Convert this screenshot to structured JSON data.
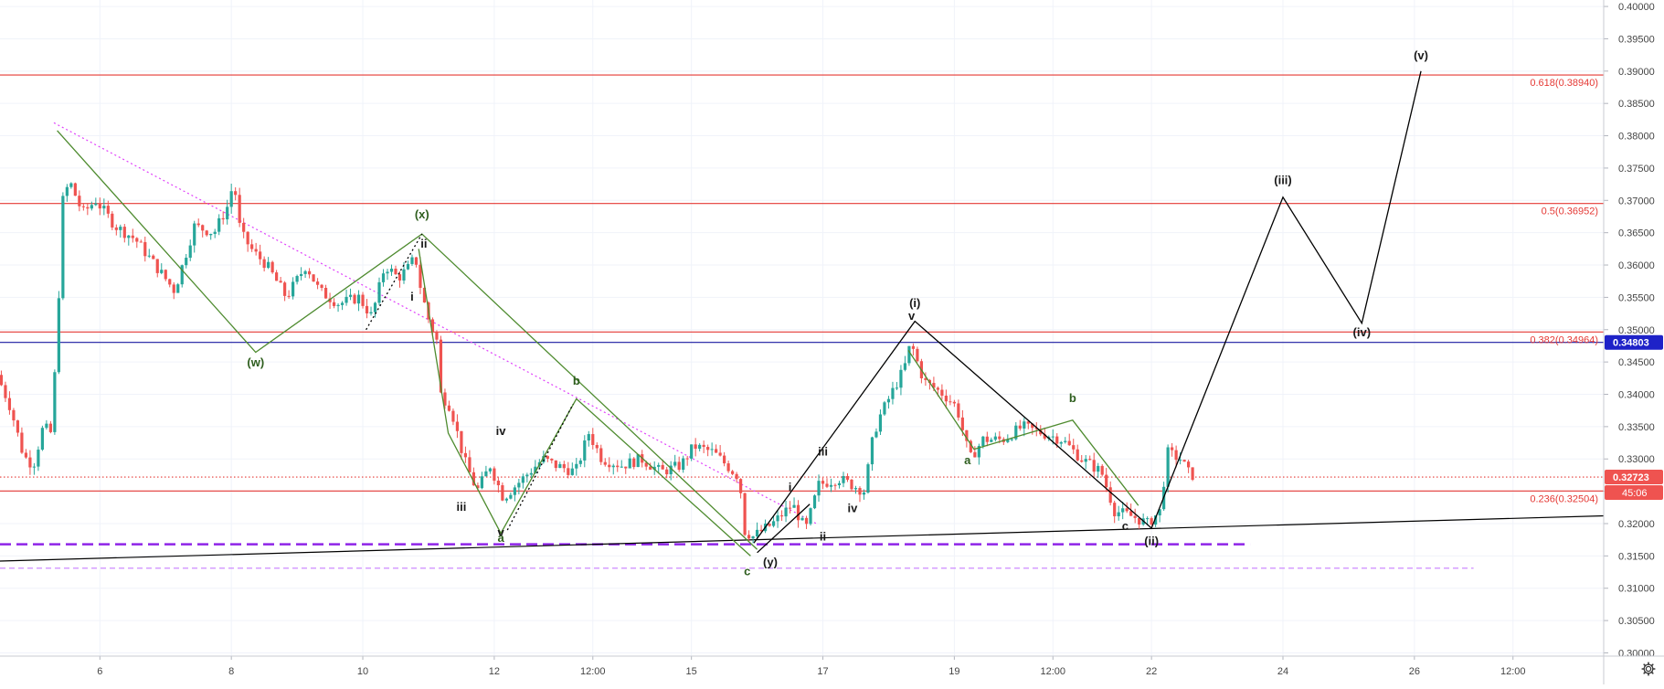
{
  "chart_data": {
    "type": "candlestick",
    "y_axis_ticks": [
      "0.40000",
      "0.39500",
      "0.39000",
      "0.38500",
      "0.38000",
      "0.37500",
      "0.37000",
      "0.36500",
      "0.36000",
      "0.35500",
      "0.35000",
      "0.34500",
      "0.34000",
      "0.33500",
      "0.33000",
      "0.32500",
      "0.32000",
      "0.31500",
      "0.31000",
      "0.30500",
      "0.30000"
    ],
    "ylim": [
      0.2995,
      0.401
    ],
    "x_axis_ticks": [
      {
        "label": "6",
        "x": 6
      },
      {
        "label": "8",
        "x": 8
      },
      {
        "label": "10",
        "x": 10
      },
      {
        "label": "12",
        "x": 12
      },
      {
        "label": "12:00",
        "x": 13.5
      },
      {
        "label": "15",
        "x": 15
      },
      {
        "label": "17",
        "x": 17
      },
      {
        "label": "19",
        "x": 19
      },
      {
        "label": "12:00",
        "x": 20.5
      },
      {
        "label": "22",
        "x": 22
      },
      {
        "label": "24",
        "x": 24
      },
      {
        "label": "26",
        "x": 26
      },
      {
        "label": "12:00",
        "x": 27.5
      }
    ],
    "xlim": [
      4.48,
      28.88
    ],
    "price_series": [
      [
        4.5,
        0.343
      ],
      [
        4.7,
        0.338
      ],
      [
        4.9,
        0.3305
      ],
      [
        5.05,
        0.329
      ],
      [
        5.2,
        0.335
      ],
      [
        5.32,
        0.334
      ],
      [
        5.4,
        0.347
      ],
      [
        5.5,
        0.37
      ],
      [
        5.6,
        0.373
      ],
      [
        5.8,
        0.368
      ],
      [
        6.0,
        0.37
      ],
      [
        6.3,
        0.366
      ],
      [
        6.6,
        0.364
      ],
      [
        6.9,
        0.36
      ],
      [
        7.2,
        0.356
      ],
      [
        7.5,
        0.366
      ],
      [
        7.8,
        0.365
      ],
      [
        8.0,
        0.369
      ],
      [
        8.1,
        0.373
      ],
      [
        8.2,
        0.365
      ],
      [
        8.4,
        0.362
      ],
      [
        8.6,
        0.36
      ],
      [
        8.9,
        0.355
      ],
      [
        9.2,
        0.36
      ],
      [
        9.4,
        0.356
      ],
      [
        9.7,
        0.354
      ],
      [
        10.0,
        0.355
      ],
      [
        10.2,
        0.352
      ],
      [
        10.4,
        0.36
      ],
      [
        10.6,
        0.358
      ],
      [
        10.8,
        0.36
      ],
      [
        10.85,
        0.362
      ],
      [
        10.95,
        0.356
      ],
      [
        11.05,
        0.352
      ],
      [
        11.2,
        0.348
      ],
      [
        11.25,
        0.34
      ],
      [
        11.4,
        0.338
      ],
      [
        11.6,
        0.33
      ],
      [
        11.8,
        0.325
      ],
      [
        12.0,
        0.329
      ],
      [
        12.2,
        0.324
      ],
      [
        12.5,
        0.327
      ],
      [
        12.8,
        0.33
      ],
      [
        13.0,
        0.329
      ],
      [
        13.3,
        0.328
      ],
      [
        13.5,
        0.334
      ],
      [
        13.7,
        0.33
      ],
      [
        14.0,
        0.329
      ],
      [
        14.3,
        0.33
      ],
      [
        14.6,
        0.328
      ],
      [
        14.9,
        0.329
      ],
      [
        15.1,
        0.332
      ],
      [
        15.4,
        0.331
      ],
      [
        15.6,
        0.329
      ],
      [
        15.8,
        0.327
      ],
      [
        15.85,
        0.319
      ],
      [
        16.0,
        0.318
      ],
      [
        16.3,
        0.32
      ],
      [
        16.6,
        0.323
      ],
      [
        16.8,
        0.319
      ],
      [
        17.0,
        0.326
      ],
      [
        17.3,
        0.327
      ],
      [
        17.5,
        0.326
      ],
      [
        17.7,
        0.325
      ],
      [
        17.8,
        0.332
      ],
      [
        17.9,
        0.336
      ],
      [
        18.1,
        0.34
      ],
      [
        18.3,
        0.344
      ],
      [
        18.4,
        0.348
      ],
      [
        18.6,
        0.342
      ],
      [
        18.9,
        0.34
      ],
      [
        19.1,
        0.338
      ],
      [
        19.3,
        0.33
      ],
      [
        19.5,
        0.333
      ],
      [
        19.8,
        0.333
      ],
      [
        20.1,
        0.335
      ],
      [
        20.4,
        0.334
      ],
      [
        20.7,
        0.333
      ],
      [
        21.0,
        0.33
      ],
      [
        21.3,
        0.328
      ],
      [
        21.5,
        0.322
      ],
      [
        21.8,
        0.321
      ],
      [
        22.0,
        0.32
      ],
      [
        22.2,
        0.322
      ],
      [
        22.3,
        0.331
      ],
      [
        22.5,
        0.33
      ],
      [
        22.65,
        0.3275
      ]
    ],
    "horizontal_lines": [
      {
        "label": "0.618(0.38940)",
        "value": 0.3894,
        "color": "#e53935",
        "style": "solid"
      },
      {
        "label": "0.5(0.36952)",
        "value": 0.36952,
        "color": "#e53935",
        "style": "solid"
      },
      {
        "label": "0.382(0.34964)",
        "value": 0.34964,
        "color": "#e53935",
        "style": "solid"
      },
      {
        "label": "0.236(0.32504)",
        "value": 0.32504,
        "color": "#e53935",
        "style": "solid"
      },
      {
        "value": 0.34803,
        "color": "#1a1aa0",
        "style": "solid",
        "price_badge": "0.34803",
        "badge_color": "#1e22c8"
      },
      {
        "value": 0.3272,
        "color": "#e53935",
        "style": "dotted",
        "price_badge": "0.32723",
        "badge_color": "#ef5350",
        "countdown": "45:06"
      },
      {
        "value": 0.3168,
        "color": "#8e24e8",
        "style": "dashed-thick",
        "x_end": 23.5
      },
      {
        "value": 0.3131,
        "color": "#c77dff",
        "style": "dashed-thin",
        "x_end": 26.9
      }
    ],
    "trendlines": [
      {
        "points": [
          [
            4.48,
            0.3142
          ],
          [
            28.88,
            0.3212
          ]
        ],
        "color": "#000000",
        "style": "solid"
      },
      {
        "points": [
          [
            5.3,
            0.382
          ],
          [
            16.9,
            0.32
          ]
        ],
        "color": "#e040fb",
        "style": "dotted"
      }
    ],
    "wave_paths": [
      {
        "color": "#4e8b2f",
        "points": [
          [
            5.35,
            0.3808
          ],
          [
            8.37,
            0.3465
          ],
          [
            10.9,
            0.3648
          ],
          [
            16.0,
            0.316
          ]
        ]
      },
      {
        "color": "#4e8b2f",
        "points": [
          [
            10.85,
            0.3625
          ],
          [
            11.3,
            0.334
          ],
          [
            12.1,
            0.3185
          ],
          [
            13.25,
            0.3393
          ],
          [
            15.9,
            0.315
          ]
        ]
      },
      {
        "color": "#4e8b2f",
        "points": [
          [
            18.3,
            0.3468
          ],
          [
            19.3,
            0.3315
          ],
          [
            20.8,
            0.336
          ],
          [
            21.8,
            0.3228
          ]
        ]
      },
      {
        "color": "#000000",
        "points": [
          [
            15.95,
            0.317
          ],
          [
            18.4,
            0.3513
          ],
          [
            22.0,
            0.3193
          ],
          [
            24.0,
            0.3705
          ],
          [
            25.2,
            0.351
          ],
          [
            26.1,
            0.39
          ]
        ]
      },
      {
        "color": "#000000",
        "points": [
          [
            16.0,
            0.3155
          ],
          [
            16.8,
            0.323
          ]
        ]
      },
      {
        "color": "#000000",
        "points": [
          [
            10.05,
            0.35
          ],
          [
            10.9,
            0.3648
          ]
        ],
        "style": "dotted"
      },
      {
        "color": "#000000",
        "points": [
          [
            12.2,
            0.319
          ],
          [
            13.2,
            0.3385
          ]
        ],
        "style": "dotted"
      }
    ],
    "annotations": [
      {
        "text": "(v)",
        "x": 26.1,
        "y": 0.3918,
        "color": "#1a1a1a"
      },
      {
        "text": "(iii)",
        "x": 24.0,
        "y": 0.3725,
        "color": "#1a1a1a"
      },
      {
        "text": "(iv)",
        "x": 25.2,
        "y": 0.349,
        "color": "#1a1a1a"
      },
      {
        "text": "(i)",
        "x": 18.4,
        "y": 0.3535,
        "color": "#1a1a1a"
      },
      {
        "text": "(ii)",
        "x": 22.0,
        "y": 0.3167,
        "color": "#1a1a1a"
      },
      {
        "text": "(x)",
        "x": 10.9,
        "y": 0.3672,
        "color": "#2e5e1e"
      },
      {
        "text": "(w)",
        "x": 8.37,
        "y": 0.3443,
        "color": "#2e5e1e"
      },
      {
        "text": "(y)",
        "x": 16.2,
        "y": 0.3134,
        "color": "#1a1a1a"
      },
      {
        "text": "ii",
        "x": 10.93,
        "y": 0.3627,
        "color": "#1a1a1a"
      },
      {
        "text": "i",
        "x": 10.75,
        "y": 0.3545,
        "color": "#1a1a1a"
      },
      {
        "text": "iii",
        "x": 11.5,
        "y": 0.322,
        "color": "#1a1a1a"
      },
      {
        "text": "iv",
        "x": 12.1,
        "y": 0.3337,
        "color": "#1a1a1a"
      },
      {
        "text": "v",
        "x": 12.1,
        "y": 0.318,
        "color": "#1a1a1a"
      },
      {
        "text": "a",
        "x": 12.1,
        "y": 0.3172,
        "color": "#2e5e1e"
      },
      {
        "text": "b",
        "x": 13.25,
        "y": 0.3415,
        "color": "#2e5e1e"
      },
      {
        "text": "c",
        "x": 15.85,
        "y": 0.312,
        "color": "#2e5e1e"
      },
      {
        "text": "i",
        "x": 16.5,
        "y": 0.325,
        "color": "#1a1a1a"
      },
      {
        "text": "ii",
        "x": 17.0,
        "y": 0.3174,
        "color": "#1a1a1a"
      },
      {
        "text": "iii",
        "x": 17.0,
        "y": 0.3305,
        "color": "#1a1a1a"
      },
      {
        "text": "iv",
        "x": 17.45,
        "y": 0.3218,
        "color": "#1a1a1a"
      },
      {
        "text": "v",
        "x": 18.35,
        "y": 0.3515,
        "color": "#1a1a1a"
      },
      {
        "text": "a",
        "x": 19.2,
        "y": 0.3292,
        "color": "#2e5e1e"
      },
      {
        "text": "b",
        "x": 20.8,
        "y": 0.3388,
        "color": "#2e5e1e"
      },
      {
        "text": "c",
        "x": 21.6,
        "y": 0.319,
        "color": "#1a1a1a"
      }
    ]
  },
  "colors": {
    "up": "#26a69a",
    "down": "#ef5350"
  },
  "icons": {
    "settings": "gear-icon"
  }
}
